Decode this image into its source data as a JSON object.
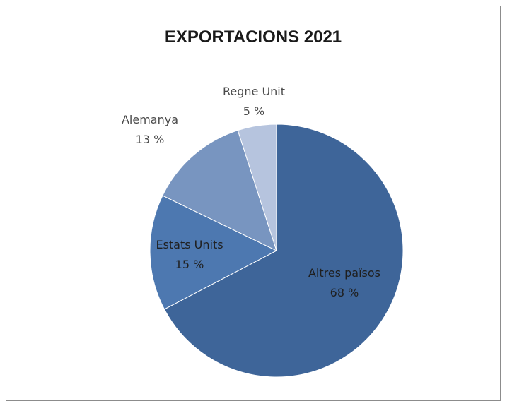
{
  "chart_data": {
    "type": "pie",
    "title": "EXPORTACIONS 2021",
    "slices": [
      {
        "label": "Altres països",
        "value": 68,
        "value_label": "68 %",
        "color": "#3e6599",
        "label_color": "#1f1f1f",
        "label_inside": true
      },
      {
        "label": "Estats Units",
        "value": 15,
        "value_label": "15 %",
        "color": "#4d78b0",
        "label_color": "#1f1f1f",
        "label_inside": true
      },
      {
        "label": "Alemanya",
        "value": 13,
        "value_label": "13 %",
        "color": "#7895c0",
        "label_color": "#4a4a4a",
        "label_inside": false
      },
      {
        "label": "Regne Unit",
        "value": 5,
        "value_label": "5 %",
        "color": "#b6c4de",
        "label_color": "#4a4a4a",
        "label_inside": false
      }
    ],
    "start_angle_deg": 0,
    "direction": "clockwise",
    "legend": "none"
  }
}
